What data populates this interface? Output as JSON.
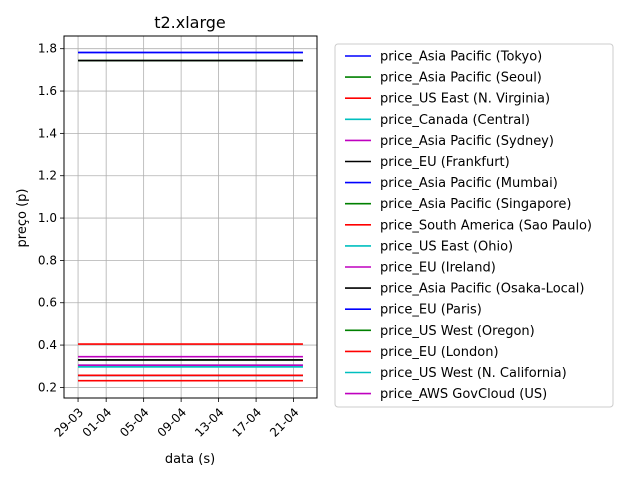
{
  "chart_data": {
    "type": "line",
    "title": "t2.xlarge",
    "xlabel": "data (s)",
    "ylabel": "preço (p)",
    "x_tick_labels": [
      "29-03",
      "01-04",
      "05-04",
      "09-04",
      "13-04",
      "17-04",
      "21-04"
    ],
    "x_tick_positions": [
      0,
      3,
      7,
      11,
      15,
      19,
      23
    ],
    "x_range": [
      0,
      24
    ],
    "xlim": [
      -1.5,
      25.5
    ],
    "ylim": [
      0.15,
      1.86
    ],
    "y_ticks": [
      0.2,
      0.4,
      0.6,
      0.8,
      1.0,
      1.2,
      1.4,
      1.6,
      1.8
    ],
    "y_tick_labels": [
      "0.2",
      "0.4",
      "0.6",
      "0.8",
      "1.0",
      "1.2",
      "1.4",
      "1.6",
      "1.8"
    ],
    "grid": true,
    "legend_position": "right",
    "series": [
      {
        "name": "price_Asia Pacific (Tokyo)",
        "color": "#0000ff",
        "value": 1.782
      },
      {
        "name": "price_Asia Pacific (Seoul)",
        "color": "#008000",
        "value": 1.744
      },
      {
        "name": "price_US East (N. Virginia)",
        "color": "#ff0000",
        "value": 0.3712
      },
      {
        "name": "price_Canada (Central)",
        "color": "#00bfbf",
        "value": 0.4128
      },
      {
        "name": "price_Asia Pacific (Sydney)",
        "color": "#bf00bf",
        "value": 0.4608
      },
      {
        "name": "price_EU (Frankfurt)",
        "color": "#000000",
        "value": 1.729
      },
      {
        "name": "price_Asia Pacific (Mumbai)",
        "color": "#0000ff",
        "value": 1.716
      },
      {
        "name": "price_Asia Pacific (Singapore)",
        "color": "#008000",
        "value": 0.4608
      },
      {
        "name": "price_South America (Sao Paulo)",
        "color": "#ff0000",
        "value": 0.4512
      },
      {
        "name": "price_US East (Ohio)",
        "color": "#00bfbf",
        "value": 0.3712
      },
      {
        "name": "price_EU (Ireland)",
        "color": "#bf00bf",
        "value": 0.4032
      },
      {
        "name": "price_Asia Pacific (Osaka-Local)",
        "color": "#000000",
        "value": 0.4864
      },
      {
        "name": "price_EU (Paris)",
        "color": "#0000ff",
        "value": 0.3712
      },
      {
        "name": "price_US West (Oregon)",
        "color": "#008000",
        "value": 0.3712
      },
      {
        "name": "price_EU (London)",
        "color": "#ff0000",
        "value": 0.4224
      },
      {
        "name": "price_US West (N. California)",
        "color": "#00bfbf",
        "value": 0.4416
      },
      {
        "name": "price_AWS GovCloud (US)",
        "color": "#bf00bf",
        "value": 0.4384
      }
    ],
    "series_values_shown": [
      1.782,
      1.744,
      0.405,
      0.297,
      0.345,
      1.744,
      1.782,
      0.33,
      0.232,
      0.297,
      0.257,
      0.33,
      0.257,
      0.257,
      0.257,
      0.305,
      0.305
    ]
  }
}
